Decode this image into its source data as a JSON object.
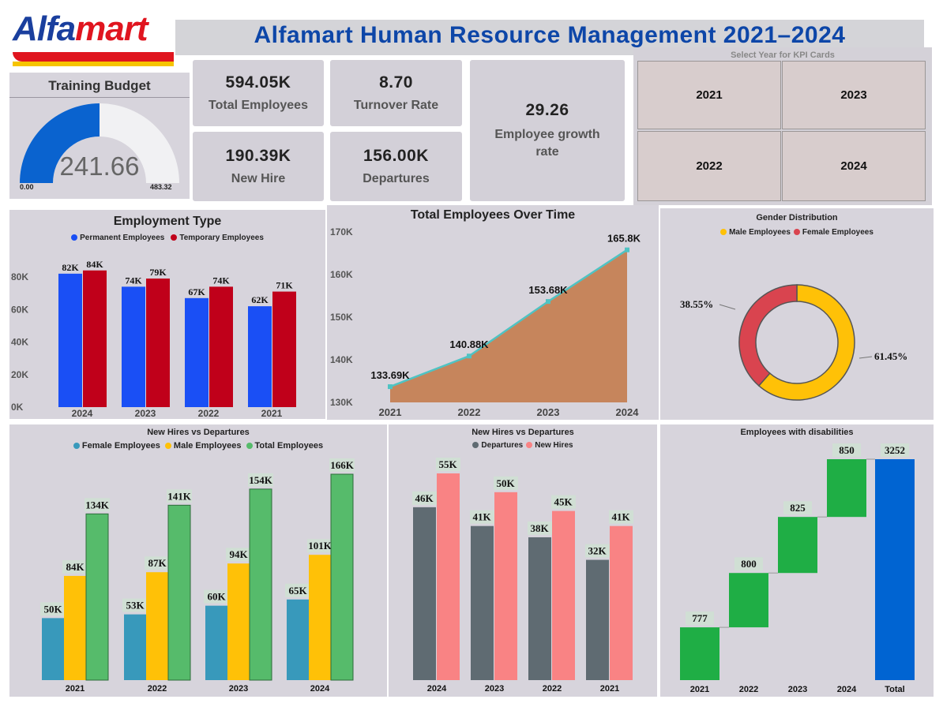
{
  "header": {
    "logo_text_a": "Alfa",
    "logo_text_b": "mart",
    "title": "Alfamart Human Resource Management 2021–2024"
  },
  "gauge": {
    "title": "Training Budget",
    "value": 241.66,
    "value_label": "241.66",
    "min_label": "0.00",
    "max_label": "483.32",
    "min": 0,
    "max": 483.32
  },
  "kpis": {
    "total_employees": {
      "value": "594.05K",
      "label": "Total Employees"
    },
    "turnover_rate": {
      "value": "8.70",
      "label": "Turnover Rate"
    },
    "new_hire": {
      "value": "190.39K",
      "label": "New Hire"
    },
    "departures": {
      "value": "156.00K",
      "label": "Departures"
    },
    "growth_rate": {
      "value": "29.26",
      "label": "Employee growth rate"
    }
  },
  "year_slicer": {
    "title": "Select Year for KPI Cards",
    "years": [
      "2021",
      "2023",
      "2022",
      "2024"
    ]
  },
  "colors": {
    "blue": "#1a4ff5",
    "red": "#c0001a",
    "area": "#c6855c",
    "line": "#4fc3c3",
    "gold": "#ffc107",
    "pink_red": "#d9444f",
    "teal": "#3899bb",
    "green": "#56bb6b",
    "slate": "#5f6b72",
    "salmon": "#f98384",
    "wf_green": "#1fae45",
    "wf_total": "#0064d2"
  },
  "chart_data": [
    {
      "type": "bar",
      "title": "Employment Type",
      "categories": [
        "2024",
        "2023",
        "2022",
        "2021"
      ],
      "series": [
        {
          "name": "Permanent Employees",
          "values": [
            82,
            74,
            67,
            62
          ],
          "labels": [
            "82K",
            "74K",
            "67K",
            "62K"
          ]
        },
        {
          "name": "Temporary Employees",
          "values": [
            84,
            79,
            74,
            71
          ],
          "labels": [
            "84K",
            "79K",
            "74K",
            "71K"
          ]
        }
      ],
      "yticks": [
        "0K",
        "20K",
        "40K",
        "60K",
        "80K"
      ],
      "ylim": [
        0,
        100
      ]
    },
    {
      "type": "area",
      "title": "Total Employees Over Time",
      "x": [
        "2021",
        "2022",
        "2023",
        "2024"
      ],
      "values": [
        133.69,
        140.88,
        153.68,
        165.8
      ],
      "labels": [
        "133.69K",
        "140.88K",
        "153.68K",
        "165.8K"
      ],
      "yticks": [
        "130K",
        "140K",
        "150K",
        "160K",
        "170K"
      ],
      "ylim": [
        130,
        170
      ]
    },
    {
      "type": "pie",
      "title": "Gender Distribution",
      "slices": [
        {
          "name": "Male Employees",
          "value": 61.45,
          "label": "61.45%"
        },
        {
          "name": "Female Employees",
          "value": 38.55,
          "label": "38.55%"
        }
      ]
    },
    {
      "type": "bar",
      "title": "New Hires vs Departures",
      "categories": [
        "2021",
        "2022",
        "2023",
        "2024"
      ],
      "series": [
        {
          "name": "Female Employees",
          "values": [
            50,
            53,
            60,
            65
          ],
          "labels": [
            "50K",
            "53K",
            "60K",
            "65K"
          ]
        },
        {
          "name": "Male Employees",
          "values": [
            84,
            87,
            94,
            101
          ],
          "labels": [
            "84K",
            "87K",
            "94K",
            "101K"
          ]
        },
        {
          "name": "Total Employees",
          "values": [
            134,
            141,
            154,
            166
          ],
          "labels": [
            "134K",
            "141K",
            "154K",
            "166K"
          ]
        }
      ],
      "ylim": [
        0,
        166
      ]
    },
    {
      "type": "bar",
      "title": "New Hires vs Departures",
      "categories": [
        "2024",
        "2023",
        "2022",
        "2021"
      ],
      "series": [
        {
          "name": "Departures",
          "values": [
            46,
            41,
            38,
            32
          ],
          "labels": [
            "46K",
            "41K",
            "38K",
            "32K"
          ]
        },
        {
          "name": "New Hires",
          "values": [
            55,
            50,
            45,
            41
          ],
          "labels": [
            "55K",
            "50K",
            "45K",
            "41K"
          ]
        }
      ],
      "ylim": [
        0,
        55
      ]
    },
    {
      "type": "bar",
      "title": "Employees with disabilities",
      "categories": [
        "2021",
        "2022",
        "2023",
        "2024",
        "Total"
      ],
      "values": [
        777,
        800,
        825,
        850,
        3252
      ],
      "labels": [
        "777",
        "800",
        "825",
        "850",
        "3252"
      ],
      "ylim": [
        0,
        3252
      ]
    }
  ]
}
